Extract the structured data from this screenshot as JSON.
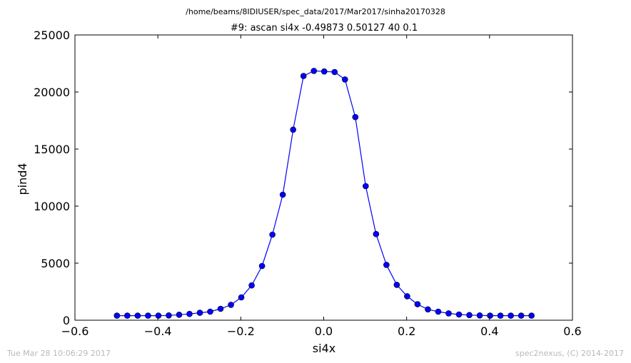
{
  "header": {
    "file_path": "/home/beams/8IDIUSER/spec_data/2017/Mar2017/sinha20170328"
  },
  "footer": {
    "timestamp": "Tue Mar 28 10:06:29 2017",
    "credit": "spec2nexus, (C) 2014-2017"
  },
  "colors": {
    "series": "#0000ff",
    "footer_text": "#b8b8b8"
  },
  "chart_data": {
    "type": "line",
    "title": "#9: ascan  si4x -0.49873 0.50127  40 0.1",
    "xlabel": "si4x",
    "ylabel": "pind4",
    "xlim": [
      -0.6,
      0.6
    ],
    "ylim": [
      0,
      25000
    ],
    "xticks": [
      -0.6,
      -0.4,
      -0.2,
      0.0,
      0.2,
      0.4,
      0.6
    ],
    "xtick_labels": [
      "−0.6",
      "−0.4",
      "−0.2",
      "0.0",
      "0.2",
      "0.4",
      "0.6"
    ],
    "yticks": [
      0,
      5000,
      10000,
      15000,
      20000,
      25000
    ],
    "ytick_labels": [
      "0",
      "5000",
      "10000",
      "15000",
      "20000",
      "25000"
    ],
    "grid": false,
    "series": [
      {
        "marker": "circle",
        "x": [
          -0.49873,
          -0.47373,
          -0.44873,
          -0.42373,
          -0.39873,
          -0.37373,
          -0.34873,
          -0.32373,
          -0.29873,
          -0.27373,
          -0.24873,
          -0.22373,
          -0.19873,
          -0.17373,
          -0.14873,
          -0.12373,
          -0.09873,
          -0.07373,
          -0.04873,
          -0.02373,
          0.00127,
          0.02627,
          0.05127,
          0.07627,
          0.10127,
          0.12627,
          0.15127,
          0.17627,
          0.20127,
          0.22627,
          0.25127,
          0.27627,
          0.30127,
          0.32627,
          0.35127,
          0.37627,
          0.40127,
          0.42627,
          0.45127,
          0.47627,
          0.50127
        ],
        "y": [
          400,
          400,
          400,
          400,
          400,
          420,
          480,
          550,
          650,
          750,
          1000,
          1350,
          2000,
          3050,
          4750,
          7500,
          11000,
          16700,
          21400,
          21850,
          21800,
          21750,
          21100,
          17800,
          11750,
          7550,
          4850,
          3100,
          2100,
          1400,
          950,
          750,
          600,
          500,
          450,
          420,
          400,
          400,
          400,
          400,
          400
        ]
      }
    ]
  }
}
